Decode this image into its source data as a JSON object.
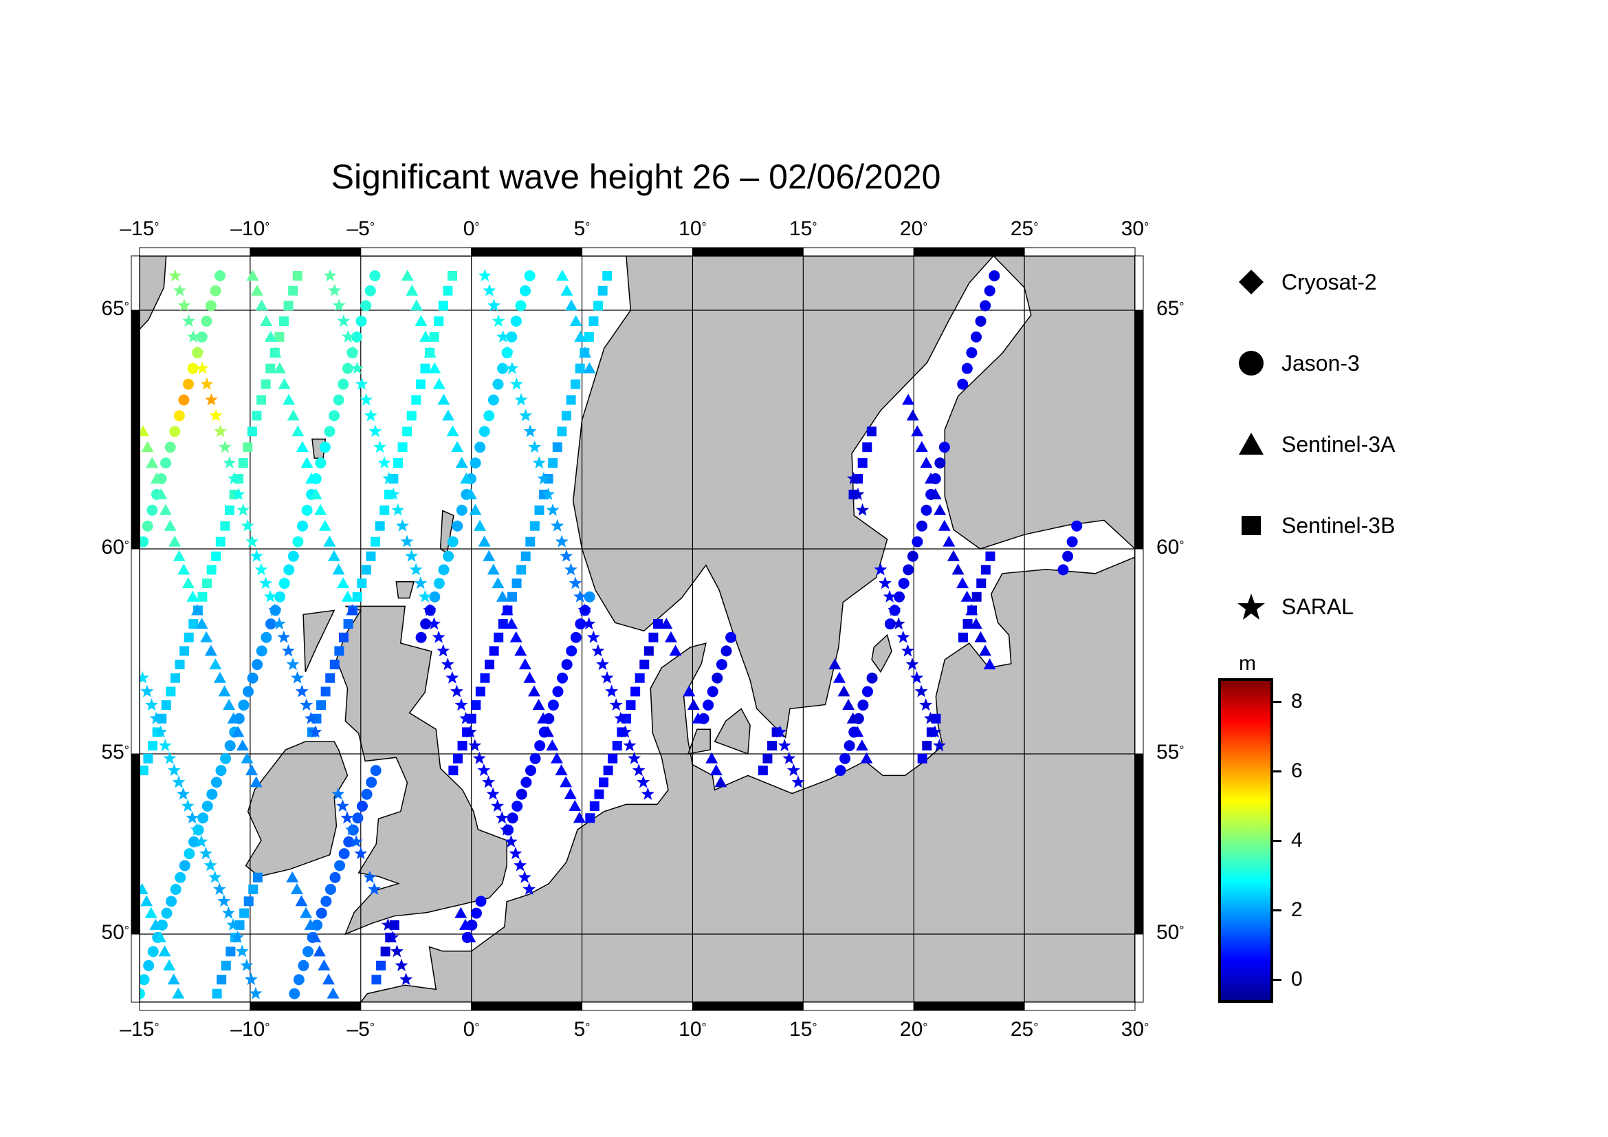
{
  "title": "Significant wave height 26 – 02/06/2020",
  "map": {
    "lon_range": [
      -15,
      30
    ],
    "lat_range": [
      48.4,
      66.2
    ],
    "lon_ticks": [
      "–15",
      "–10",
      "–5",
      "0",
      "5",
      "10",
      "15",
      "20",
      "25",
      "30"
    ],
    "lat_ticks": [
      "65",
      "60",
      "55",
      "50"
    ],
    "degree_symbol": "°",
    "land_color": "#bebebe",
    "sea_color": "#ffffff"
  },
  "legend": {
    "items": [
      {
        "label": "Cryosat-2",
        "icon": "diamond-icon"
      },
      {
        "label": "Jason-3",
        "icon": "circle-icon"
      },
      {
        "label": "Sentinel-3A",
        "icon": "triangle-icon"
      },
      {
        "label": "Sentinel-3B",
        "icon": "square-icon"
      },
      {
        "label": "SARAL",
        "icon": "star-icon"
      }
    ]
  },
  "colorbar": {
    "unit": "m",
    "ticks": [
      "8",
      "6",
      "4",
      "2",
      "0"
    ],
    "tick_values": [
      8,
      6,
      4,
      2,
      0
    ],
    "range": [
      -0.6,
      8.6
    ],
    "colors": [
      "#00008f",
      "#0000ff",
      "#0080ff",
      "#00ffff",
      "#80ff80",
      "#ffff00",
      "#ff8000",
      "#ff0000",
      "#800000"
    ]
  }
}
